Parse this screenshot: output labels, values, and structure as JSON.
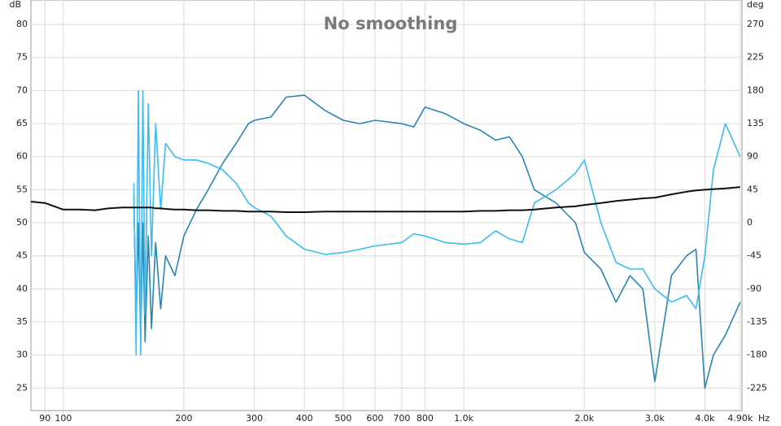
{
  "chart_data": {
    "type": "line",
    "title": "No smoothing",
    "y_label": "dB",
    "y2_label": "deg",
    "x_label": "Hz",
    "log_x": true,
    "grid": true,
    "xlim": [
      83,
      4950
    ],
    "xticks": [
      90,
      100,
      200,
      300,
      400,
      500,
      600,
      700,
      800,
      {
        "value": 1000,
        "label": "1.0k"
      },
      {
        "value": 2000,
        "label": "2.0k"
      },
      {
        "value": 3000,
        "label": "3.0k"
      },
      {
        "value": 4000,
        "label": "4.0k"
      },
      {
        "value": 4900,
        "label": "4.90k"
      }
    ],
    "ylim": [
      21.6,
      83.7
    ],
    "yticks": [
      25,
      30,
      35,
      40,
      45,
      50,
      55,
      60,
      65,
      70,
      75,
      80
    ],
    "y2lim": [
      -255.6,
      303.3
    ],
    "y2ticks": [
      -225,
      -180,
      -135,
      -90,
      -45,
      0,
      45,
      90,
      135,
      180,
      225,
      270
    ],
    "x": [
      83,
      90,
      100,
      110,
      120,
      130,
      140,
      150,
      152,
      154,
      156,
      158,
      160,
      163,
      166,
      170,
      175,
      180,
      190,
      200,
      215,
      230,
      250,
      270,
      290,
      300,
      330,
      360,
      400,
      450,
      500,
      550,
      600,
      700,
      750,
      800,
      900,
      1000,
      1100,
      1200,
      1300,
      1400,
      1500,
      1700,
      1900,
      2000,
      2200,
      2400,
      2600,
      2800,
      3000,
      3300,
      3600,
      3800,
      4000,
      4200,
      4500,
      4900
    ],
    "series": [
      {
        "color": "#2a86b0",
        "axis": "y",
        "values": [
          null,
          null,
          null,
          null,
          null,
          null,
          null,
          54,
          35,
          50,
          32,
          50,
          32,
          48,
          34,
          47,
          37,
          45,
          42,
          48,
          52,
          55,
          59,
          62,
          65,
          65.5,
          66,
          69,
          69.3,
          67,
          65.5,
          65,
          65.5,
          65,
          64.5,
          67.5,
          66.5,
          65,
          64,
          62.5,
          63,
          60,
          55,
          53,
          50,
          45.5,
          43,
          38,
          42,
          40,
          26,
          42,
          45,
          46,
          25,
          30,
          33,
          38
        ]
      },
      {
        "color": "#3cbcf0",
        "axis": "y2",
        "values": [
          null,
          null,
          null,
          null,
          null,
          null,
          null,
          54,
          -180,
          180,
          -180,
          180,
          -126,
          162,
          -45,
          135,
          18,
          108,
          90,
          85.5,
          85.5,
          81,
          72,
          54,
          27,
          20.7,
          9,
          -18,
          -36,
          -43,
          -40.5,
          -36,
          -31.5,
          -27,
          -15,
          -18,
          -27,
          -29,
          -27,
          -11,
          -22,
          -27,
          27,
          45,
          67.5,
          85.5,
          0,
          -54,
          -63,
          -63,
          -90,
          -108,
          -99,
          -117,
          -45,
          72,
          135,
          90
        ]
      },
      {
        "color": "#111111",
        "axis": "y",
        "values": [
          53.2,
          53,
          52,
          52,
          51.9,
          52.2,
          52.3,
          52.3,
          52.3,
          52.3,
          52.3,
          52.3,
          52.3,
          52.3,
          52.3,
          52.2,
          52.2,
          52.1,
          52,
          52,
          51.9,
          51.9,
          51.8,
          51.8,
          51.7,
          51.7,
          51.7,
          51.6,
          51.6,
          51.7,
          51.7,
          51.7,
          51.7,
          51.7,
          51.7,
          51.7,
          51.7,
          51.7,
          51.8,
          51.8,
          51.9,
          51.9,
          52,
          52.3,
          52.5,
          52.7,
          53,
          53.3,
          53.5,
          53.7,
          53.8,
          54.3,
          54.7,
          54.9,
          55,
          55.1,
          55.2,
          55.4
        ]
      }
    ]
  }
}
